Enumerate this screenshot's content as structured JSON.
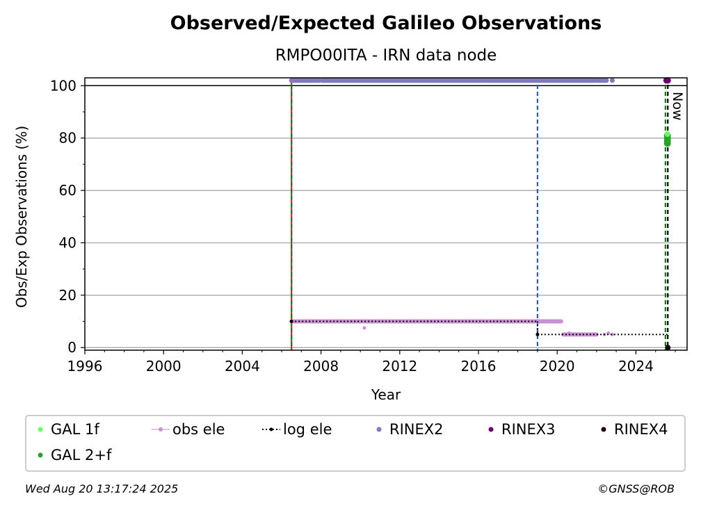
{
  "chart_data": {
    "type": "scatter",
    "title": "Observed/Expected Galileo Observations",
    "subtitle": "RMPO00ITA - IRN data node",
    "xlabel": "Year",
    "ylabel": "Obs/Exp Observations (%)",
    "xlim": [
      1996,
      2026.6
    ],
    "ylim": [
      -1,
      103
    ],
    "x_ticks": [
      1996,
      2000,
      2004,
      2008,
      2012,
      2016,
      2020,
      2024
    ],
    "y_ticks": [
      0,
      20,
      40,
      60,
      80,
      100
    ],
    "grid": "horizontal",
    "legend_position": "bottom",
    "now_label": "Now",
    "colors": {
      "gal_1f": "#66ff66",
      "gal_2f": "#2ca02c",
      "obs_ele": "#c88fd2",
      "log_ele": "#000000",
      "rinex2": "#8079ba",
      "rinex3": "#6a006a",
      "rinex4": "#1a0010",
      "event_red": "#d62728",
      "event_green": "#008000",
      "event_blue": "#1f5fbf"
    },
    "legend": [
      {
        "label": "GAL 1f",
        "color": "#66ff66",
        "marker": "dot"
      },
      {
        "label": "obs ele",
        "color": "#c88fd2",
        "marker": "line-dot"
      },
      {
        "label": "log ele",
        "color": "#000000",
        "marker": "dotted-line-dot"
      },
      {
        "label": "RINEX2",
        "color": "#8079ba",
        "marker": "dot"
      },
      {
        "label": "RINEX3",
        "color": "#6a006a",
        "marker": "dot"
      },
      {
        "label": "RINEX4",
        "color": "#1a0010",
        "marker": "dot"
      },
      {
        "label": "GAL 2+f",
        "color": "#2ca02c",
        "marker": "dot"
      }
    ],
    "vertical_lines": [
      {
        "x": 2006.5,
        "color": "#d62728",
        "style": "solid"
      },
      {
        "x": 2006.5,
        "color": "#008000",
        "style": "dashed"
      },
      {
        "x": 2019.0,
        "color": "#1f5fbf",
        "style": "dashed"
      },
      {
        "x": 2025.5,
        "color": "#008000",
        "style": "dashed"
      },
      {
        "x": 2025.62,
        "color": "#000000",
        "style": "dashed"
      }
    ],
    "reference_line_y": 100,
    "series": [
      {
        "name": "RINEX2",
        "kind": "segments",
        "y": 102,
        "segments": [
          [
            2006.5,
            2007.9
          ],
          [
            2008.05,
            2016.3
          ],
          [
            2016.4,
            2021.9
          ],
          [
            2022.0,
            2022.5
          ]
        ],
        "points": [
          [
            2022.8,
            102
          ]
        ]
      },
      {
        "name": "RINEX3",
        "kind": "points",
        "points": [
          [
            2025.55,
            102
          ],
          [
            2025.62,
            102
          ]
        ]
      },
      {
        "name": "GAL 2+f",
        "kind": "points",
        "points": [
          [
            2025.6,
            78
          ],
          [
            2025.6,
            79
          ],
          [
            2025.6,
            80
          ],
          [
            2025.6,
            81
          ]
        ]
      },
      {
        "name": "GAL 1f",
        "kind": "points",
        "points": [
          [
            2025.6,
            81.5
          ]
        ]
      },
      {
        "name": "obs ele",
        "kind": "segments",
        "segments": [
          [
            2006.5,
            2008.1,
            10
          ],
          [
            2008.1,
            2016.3,
            10
          ],
          [
            2016.3,
            2019.0,
            10
          ],
          [
            2019.0,
            2020.2,
            10
          ],
          [
            2020.3,
            2022.0,
            5
          ]
        ],
        "points": [
          [
            2010.2,
            7.5
          ],
          [
            2020.6,
            5.5
          ],
          [
            2022.4,
            5
          ],
          [
            2022.6,
            5.5
          ],
          [
            2022.8,
            5
          ]
        ]
      },
      {
        "name": "log ele",
        "kind": "steps",
        "segments": [
          [
            2006.5,
            2019.0,
            10
          ],
          [
            2019.0,
            2025.6,
            5
          ]
        ]
      },
      {
        "name": "RINEX4",
        "kind": "points",
        "points": [
          [
            2025.62,
            0
          ]
        ]
      }
    ]
  },
  "footer": {
    "timestamp": "Wed Aug 20 13:17:24 2025",
    "credit": "©GNSS@ROB"
  }
}
